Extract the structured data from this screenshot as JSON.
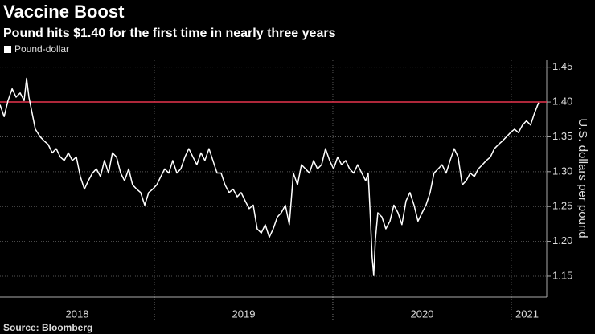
{
  "chart_data": {
    "type": "line",
    "title": "Vaccine Boost",
    "subtitle": "Pound hits $1.40 for the first time in nearly three years",
    "y_label": "U.S. dollars per pound",
    "source": "Source: Bloomberg",
    "x": [
      2018.135,
      2018.158,
      2018.18,
      2018.203,
      2018.225,
      2018.248,
      2018.27,
      2018.284,
      2018.297,
      2018.315,
      2018.333,
      2018.36,
      2018.383,
      2018.405,
      2018.428,
      2018.45,
      2018.473,
      2018.495,
      2018.518,
      2018.54,
      2018.563,
      2018.585,
      2018.608,
      2018.63,
      2018.653,
      2018.675,
      2018.698,
      2018.72,
      2018.743,
      2018.765,
      2018.788,
      2018.811,
      2018.833,
      2018.856,
      2018.878,
      2018.901,
      2018.923,
      2018.946,
      2018.968,
      2018.991,
      2019.013,
      2019.036,
      2019.058,
      2019.081,
      2019.103,
      2019.126,
      2019.148,
      2019.171,
      2019.193,
      2019.216,
      2019.238,
      2019.261,
      2019.283,
      2019.306,
      2019.328,
      2019.351,
      2019.374,
      2019.396,
      2019.419,
      2019.441,
      2019.464,
      2019.486,
      2019.509,
      2019.531,
      2019.554,
      2019.576,
      2019.599,
      2019.621,
      2019.644,
      2019.666,
      2019.689,
      2019.711,
      2019.734,
      2019.756,
      2019.779,
      2019.802,
      2019.824,
      2019.847,
      2019.869,
      2019.892,
      2019.914,
      2019.937,
      2019.959,
      2019.982,
      2020.004,
      2020.027,
      2020.049,
      2020.072,
      2020.094,
      2020.117,
      2020.139,
      2020.162,
      2020.184,
      2020.198,
      2020.207,
      2020.22,
      2020.229,
      2020.238,
      2020.252,
      2020.275,
      2020.297,
      2020.32,
      2020.342,
      2020.365,
      2020.387,
      2020.41,
      2020.432,
      2020.455,
      2020.477,
      2020.5,
      2020.522,
      2020.545,
      2020.567,
      2020.59,
      2020.612,
      2020.635,
      2020.657,
      2020.68,
      2020.702,
      2020.725,
      2020.747,
      2020.77,
      2020.793,
      2020.815,
      2020.838,
      2020.86,
      2020.883,
      2020.905,
      2020.928,
      2020.95,
      2020.973,
      2020.995,
      2021.018,
      2021.04,
      2021.063,
      2021.085,
      2021.108,
      2021.13,
      2021.153
    ],
    "series": [
      {
        "name": "Pound-dollar",
        "color": "#ffffff",
        "values": [
          1.396,
          1.379,
          1.402,
          1.419,
          1.407,
          1.413,
          1.402,
          1.434,
          1.407,
          1.384,
          1.361,
          1.35,
          1.344,
          1.339,
          1.327,
          1.333,
          1.321,
          1.316,
          1.327,
          1.316,
          1.321,
          1.293,
          1.275,
          1.287,
          1.298,
          1.304,
          1.293,
          1.316,
          1.298,
          1.327,
          1.321,
          1.298,
          1.287,
          1.304,
          1.281,
          1.275,
          1.27,
          1.252,
          1.27,
          1.275,
          1.281,
          1.293,
          1.304,
          1.298,
          1.316,
          1.298,
          1.304,
          1.321,
          1.333,
          1.321,
          1.31,
          1.327,
          1.316,
          1.333,
          1.316,
          1.298,
          1.298,
          1.281,
          1.27,
          1.275,
          1.264,
          1.27,
          1.258,
          1.247,
          1.252,
          1.218,
          1.212,
          1.224,
          1.206,
          1.218,
          1.235,
          1.241,
          1.252,
          1.224,
          1.298,
          1.281,
          1.31,
          1.304,
          1.298,
          1.316,
          1.304,
          1.31,
          1.333,
          1.316,
          1.304,
          1.321,
          1.31,
          1.316,
          1.304,
          1.298,
          1.31,
          1.298,
          1.287,
          1.298,
          1.252,
          1.178,
          1.151,
          1.201,
          1.241,
          1.235,
          1.218,
          1.229,
          1.252,
          1.241,
          1.224,
          1.258,
          1.27,
          1.252,
          1.229,
          1.241,
          1.252,
          1.27,
          1.298,
          1.304,
          1.31,
          1.298,
          1.316,
          1.333,
          1.321,
          1.281,
          1.287,
          1.298,
          1.293,
          1.304,
          1.31,
          1.316,
          1.321,
          1.333,
          1.339,
          1.344,
          1.35,
          1.356,
          1.361,
          1.356,
          1.367,
          1.373,
          1.367,
          1.384,
          1.399
        ]
      }
    ],
    "xlim": [
      2018.135,
      2021.176
    ],
    "xticks": [
      2018,
      2019,
      2020,
      2021
    ],
    "ylim": [
      1.12,
      1.46
    ],
    "yticks": [
      {
        "value": 1.15,
        "label": "1.15"
      },
      {
        "value": 1.2,
        "label": "1.20"
      },
      {
        "value": 1.25,
        "label": "1.25"
      },
      {
        "value": 1.3,
        "label": "1.30"
      },
      {
        "value": 1.35,
        "label": "1.35"
      },
      {
        "value": 1.4,
        "label": "1.40"
      },
      {
        "value": 1.45,
        "label": "1.45"
      }
    ],
    "reference_line": {
      "value": 1.4,
      "color": "#e8344e"
    },
    "grid": true,
    "legend": "top-left"
  }
}
